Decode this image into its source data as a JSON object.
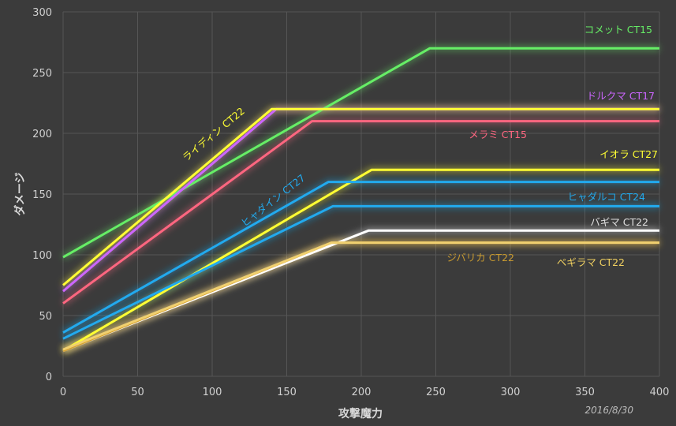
{
  "chart_data": {
    "type": "line",
    "title": "",
    "xlabel": "攻撃魔力",
    "ylabel": "ダメージ",
    "xlim": [
      0,
      400
    ],
    "ylim": [
      0,
      300
    ],
    "xticks": [
      0,
      50,
      100,
      150,
      200,
      250,
      300,
      350,
      400
    ],
    "yticks": [
      0,
      50,
      100,
      150,
      200,
      250,
      300
    ],
    "grid": true,
    "legend": "none (inline labels)",
    "note": "2016/8/30",
    "series": [
      {
        "name": "コメット CT15",
        "color": "#66ee66",
        "x": [
          0,
          246,
          400
        ],
        "y": [
          98,
          270,
          270
        ]
      },
      {
        "name": "ドルクマ CT17",
        "color": "#cc66ff",
        "x": [
          0,
          143,
          400
        ],
        "y": [
          70,
          220,
          220
        ]
      },
      {
        "name": "メラミ CT15",
        "color": "#ff6680",
        "x": [
          0,
          167,
          400
        ],
        "y": [
          60,
          210,
          210
        ]
      },
      {
        "name": "ライディン CT22",
        "color": "#ffff33",
        "x": [
          0,
          140,
          400
        ],
        "y": [
          75,
          220,
          220
        ]
      },
      {
        "name": "イオラ CT27",
        "color": "#ffff33",
        "x": [
          0,
          207,
          400
        ],
        "y": [
          21,
          170,
          170
        ]
      },
      {
        "name": "ヒャダイン CT27",
        "color": "#22aaee",
        "x": [
          0,
          178,
          400
        ],
        "y": [
          36,
          160,
          160
        ]
      },
      {
        "name": "ヒャダルコ CT24",
        "color": "#22aaee",
        "x": [
          0,
          181,
          400
        ],
        "y": [
          31,
          140,
          140
        ]
      },
      {
        "name": "バギマ CT22",
        "color": "#ffffff",
        "x": [
          0,
          205,
          400
        ],
        "y": [
          21,
          120,
          120
        ]
      },
      {
        "name": "ジバリカ CT22",
        "color": "#d4a030",
        "x": [
          0,
          180,
          400
        ],
        "y": [
          21,
          110,
          110
        ]
      },
      {
        "name": "ベギラマ CT22",
        "color": "#f0d070",
        "x": [
          0,
          180,
          400
        ],
        "y": [
          22,
          110,
          110
        ]
      }
    ],
    "labels": [
      {
        "text": "コメット CT15",
        "color": "#66ee66"
      },
      {
        "text": "ドルクマ CT17",
        "color": "#cc66ff"
      },
      {
        "text": "メラミ CT15",
        "color": "#ff6680"
      },
      {
        "text": "ライディン CT22",
        "color": "#ffff33"
      },
      {
        "text": "イオラ CT27",
        "color": "#ffff33"
      },
      {
        "text": "ヒャダイン CT27",
        "color": "#22aaee"
      },
      {
        "text": "ヒャダルコ CT24",
        "color": "#22aaee"
      },
      {
        "text": "バギマ CT22",
        "color": "#e0e0e0"
      },
      {
        "text": "ジバリカ CT22",
        "color": "#c89a30"
      },
      {
        "text": "ベギラマ CT22",
        "color": "#f0d060"
      }
    ]
  }
}
